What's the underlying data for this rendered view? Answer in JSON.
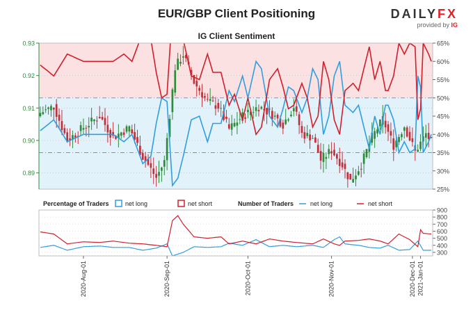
{
  "header": {
    "title": "EUR/GBP Client Positioning",
    "subtitle": "IG Client Sentiment",
    "brand_left": "DAILY",
    "brand_right": "FX",
    "provided_by": "provided by",
    "provider": "IG"
  },
  "legend": {
    "pct_heading": "Percentage of Traders",
    "net_long": "net long",
    "net_short": "net short",
    "num_heading": "Number of Traders",
    "num_net_long": "net long",
    "num_net_short": "net short"
  },
  "colors": {
    "net_long": "#2f9ee0",
    "net_short": "#d21e2b",
    "candle_up": "#2e8b3a",
    "candle_down": "#c0303a",
    "long_fill": "#e2f2fb",
    "short_fill": "#fbe1e1",
    "left_axis": "#2e8b3a"
  },
  "chart_data": [
    {
      "type": "line",
      "title": "",
      "x_ticks": [
        "2020-Aug-01",
        "2020-Sep-01",
        "2020-Oct-01",
        "2020-Nov-01",
        "2020-Dec-01",
        "2021-Jan-01"
      ],
      "price_axis": {
        "ylim": [
          0.885,
          0.93
        ],
        "ticks": [
          "0.93",
          "0.92",
          "0.91",
          "0.90",
          "0.89"
        ]
      },
      "pct_axis": {
        "ylim": [
          25,
          65
        ],
        "ticks": [
          "65%",
          "60%",
          "55%",
          "50%",
          "45%",
          "40%",
          "35%",
          "30%",
          "25%"
        ]
      },
      "price_keyframes": [
        [
          0,
          0.9085
        ],
        [
          5,
          0.9105
        ],
        [
          10,
          0.9
        ],
        [
          16,
          0.904
        ],
        [
          22,
          0.9075
        ],
        [
          27,
          0.901
        ],
        [
          33,
          0.904
        ],
        [
          38,
          0.895
        ],
        [
          43,
          0.8885
        ],
        [
          46,
          0.8935
        ],
        [
          50,
          0.9225
        ],
        [
          53,
          0.9265
        ],
        [
          57,
          0.918
        ],
        [
          62,
          0.912
        ],
        [
          66,
          0.9105
        ],
        [
          70,
          0.9035
        ],
        [
          75,
          0.9075
        ],
        [
          81,
          0.9105
        ],
        [
          86,
          0.908
        ],
        [
          90,
          0.905
        ],
        [
          94,
          0.9105
        ],
        [
          97,
          0.902
        ],
        [
          101,
          0.901
        ],
        [
          104,
          0.894
        ],
        [
          108,
          0.897
        ],
        [
          112,
          0.8925
        ],
        [
          115,
          0.8875
        ],
        [
          119,
          0.8925
        ],
        [
          123,
          0.901
        ],
        [
          127,
          0.9065
        ],
        [
          131,
          0.8985
        ],
        [
          135,
          0.9045
        ],
        [
          139,
          0.8965
        ],
        [
          143,
          0.902
        ],
        [
          145,
          0.8995
        ]
      ],
      "series": [
        {
          "name": "net long",
          "keyframes": [
            [
              0,
              41
            ],
            [
              5,
              44
            ],
            [
              10,
              38
            ],
            [
              16,
              40
            ],
            [
              22,
              40
            ],
            [
              27,
              40
            ],
            [
              31,
              38
            ],
            [
              34,
              40
            ],
            [
              38,
              32
            ],
            [
              41,
              34
            ],
            [
              43,
              43
            ],
            [
              45,
              50
            ],
            [
              47,
              49
            ],
            [
              49,
              26
            ],
            [
              51,
              28
            ],
            [
              53,
              34
            ],
            [
              56,
              44
            ],
            [
              59,
              45
            ],
            [
              62,
              38
            ],
            [
              64,
              43
            ],
            [
              67,
              43
            ],
            [
              70,
              52
            ],
            [
              72,
              49
            ],
            [
              75,
              56
            ],
            [
              77,
              50
            ],
            [
              80,
              60
            ],
            [
              82,
              58
            ],
            [
              85,
              45
            ],
            [
              88,
              42
            ],
            [
              90,
              47
            ],
            [
              92,
              53
            ],
            [
              94,
              52
            ],
            [
              97,
              46
            ],
            [
              99,
              50
            ],
            [
              101,
              58
            ],
            [
              103,
              55
            ],
            [
              105,
              40
            ],
            [
              107,
              45
            ],
            [
              109,
              56
            ],
            [
              111,
              60
            ],
            [
              113,
              48
            ],
            [
              116,
              46
            ],
            [
              118,
              48
            ],
            [
              120,
              42
            ],
            [
              122,
              36
            ],
            [
              124,
              45
            ],
            [
              126,
              40
            ],
            [
              128,
              48
            ],
            [
              129,
              48
            ],
            [
              131,
              44
            ],
            [
              133,
              35
            ],
            [
              135,
              38
            ],
            [
              137,
              35
            ],
            [
              139,
              36
            ],
            [
              140,
              56
            ],
            [
              141,
              53
            ],
            [
              142,
              35
            ],
            [
              144,
              38
            ],
            [
              145,
              40
            ]
          ]
        },
        {
          "name": "net short",
          "keyframes": [
            [
              0,
              59
            ],
            [
              5,
              56
            ],
            [
              10,
              62
            ],
            [
              16,
              60
            ],
            [
              22,
              60
            ],
            [
              27,
              60
            ],
            [
              31,
              62
            ],
            [
              34,
              60
            ],
            [
              38,
              68
            ],
            [
              41,
              66
            ],
            [
              43,
              57
            ],
            [
              45,
              50
            ],
            [
              47,
              51
            ],
            [
              49,
              74
            ],
            [
              51,
              72
            ],
            [
              53,
              66
            ],
            [
              56,
              56
            ],
            [
              59,
              55
            ],
            [
              62,
              62
            ],
            [
              64,
              57
            ],
            [
              67,
              57
            ],
            [
              70,
              48
            ],
            [
              72,
              51
            ],
            [
              75,
              44
            ],
            [
              77,
              50
            ],
            [
              80,
              40
            ],
            [
              82,
              42
            ],
            [
              85,
              55
            ],
            [
              88,
              58
            ],
            [
              90,
              53
            ],
            [
              92,
              47
            ],
            [
              94,
              48
            ],
            [
              97,
              54
            ],
            [
              99,
              50
            ],
            [
              101,
              42
            ],
            [
              103,
              45
            ],
            [
              105,
              60
            ],
            [
              107,
              55
            ],
            [
              109,
              44
            ],
            [
              111,
              40
            ],
            [
              113,
              52
            ],
            [
              116,
              54
            ],
            [
              118,
              52
            ],
            [
              120,
              58
            ],
            [
              122,
              64
            ],
            [
              124,
              55
            ],
            [
              126,
              60
            ],
            [
              128,
              52
            ],
            [
              129,
              52
            ],
            [
              131,
              56
            ],
            [
              133,
              65
            ],
            [
              135,
              62
            ],
            [
              137,
              65
            ],
            [
              139,
              64
            ],
            [
              140,
              44
            ],
            [
              141,
              47
            ],
            [
              142,
              65
            ],
            [
              144,
              62
            ],
            [
              145,
              60
            ]
          ]
        }
      ]
    },
    {
      "type": "line",
      "title": "",
      "x_ticks": [
        "2020-Aug-01",
        "2020-Sep-01",
        "2020-Oct-01",
        "2020-Nov-01",
        "2020-Dec-01",
        "2021-Jan-01"
      ],
      "ylim": [
        250,
        900
      ],
      "y_ticks": [
        "900",
        "800",
        "700",
        "600",
        "500",
        "400",
        "300"
      ],
      "series": [
        {
          "name": "net long",
          "keyframes": [
            [
              0,
              370
            ],
            [
              5,
              400
            ],
            [
              10,
              330
            ],
            [
              16,
              380
            ],
            [
              22,
              390
            ],
            [
              27,
              370
            ],
            [
              33,
              370
            ],
            [
              38,
              330
            ],
            [
              43,
              360
            ],
            [
              47,
              420
            ],
            [
              49,
              250
            ],
            [
              53,
              300
            ],
            [
              57,
              380
            ],
            [
              62,
              370
            ],
            [
              67,
              380
            ],
            [
              70,
              430
            ],
            [
              75,
              400
            ],
            [
              80,
              480
            ],
            [
              85,
              380
            ],
            [
              90,
              400
            ],
            [
              95,
              380
            ],
            [
              101,
              400
            ],
            [
              105,
              370
            ],
            [
              109,
              480
            ],
            [
              111,
              520
            ],
            [
              113,
              420
            ],
            [
              118,
              400
            ],
            [
              122,
              370
            ],
            [
              126,
              360
            ],
            [
              129,
              400
            ],
            [
              133,
              330
            ],
            [
              137,
              340
            ],
            [
              140,
              460
            ],
            [
              142,
              330
            ],
            [
              145,
              330
            ]
          ]
        },
        {
          "name": "net short",
          "keyframes": [
            [
              0,
              590
            ],
            [
              5,
              560
            ],
            [
              10,
              420
            ],
            [
              16,
              450
            ],
            [
              22,
              440
            ],
            [
              27,
              460
            ],
            [
              33,
              430
            ],
            [
              38,
              420
            ],
            [
              43,
              400
            ],
            [
              47,
              380
            ],
            [
              49,
              750
            ],
            [
              51,
              820
            ],
            [
              53,
              700
            ],
            [
              57,
              520
            ],
            [
              62,
              500
            ],
            [
              67,
              520
            ],
            [
              70,
              420
            ],
            [
              75,
              460
            ],
            [
              80,
              420
            ],
            [
              85,
              490
            ],
            [
              90,
              460
            ],
            [
              95,
              440
            ],
            [
              101,
              420
            ],
            [
              105,
              490
            ],
            [
              109,
              420
            ],
            [
              111,
              400
            ],
            [
              113,
              460
            ],
            [
              118,
              470
            ],
            [
              122,
              490
            ],
            [
              126,
              460
            ],
            [
              129,
              420
            ],
            [
              133,
              560
            ],
            [
              137,
              480
            ],
            [
              140,
              380
            ],
            [
              141,
              620
            ],
            [
              142,
              570
            ],
            [
              145,
              560
            ]
          ]
        }
      ]
    }
  ]
}
